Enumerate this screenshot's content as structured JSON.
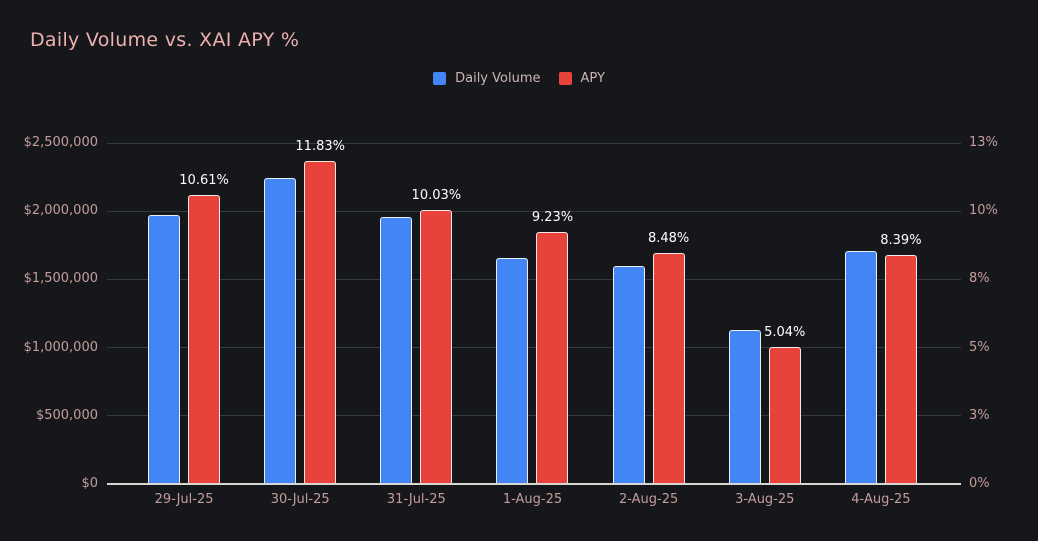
{
  "page": {
    "background": "#16171b"
  },
  "chart": {
    "title": "Daily Volume vs. XAI APY %"
  },
  "legend": {
    "items": [
      {
        "label": "Daily Volume",
        "color": "#4285f4"
      },
      {
        "label": "APY",
        "color": "#e8433a"
      }
    ]
  },
  "colors": {
    "background": "#16171b",
    "title_text": "#eeafaf",
    "axis_tick_text": "#c49c9c",
    "legend_text": "#cdb5b5",
    "gridline": "#36383f",
    "baseline": "#d8d6d3",
    "bar_blue": "#4285f4",
    "bar_red": "#e8433a",
    "bar_stroke": "#f8f8f8",
    "data_label_text": "#ffffff"
  },
  "chart_data": {
    "type": "bar",
    "title": "Daily Volume vs. XAI APY %",
    "categories": [
      "29-Jul-25",
      "30-Jul-25",
      "31-Jul-25",
      "1-Aug-25",
      "2-Aug-25",
      "3-Aug-25",
      "4-Aug-25"
    ],
    "series": [
      {
        "name": "Daily Volume",
        "axis": "left",
        "color": "#4285f4",
        "values": [
          1970000,
          2240000,
          1960000,
          1660000,
          1600000,
          1130000,
          1710000
        ]
      },
      {
        "name": "APY",
        "axis": "right",
        "color": "#e8433a",
        "values": [
          10.61,
          11.83,
          10.03,
          9.23,
          8.48,
          5.04,
          8.39
        ],
        "data_labels": [
          "10.61%",
          "11.83%",
          "10.03%",
          "9.23%",
          "8.48%",
          "5.04%",
          "8.39%"
        ]
      }
    ],
    "left_axis": {
      "min": 0,
      "max": 2500000,
      "tick_labels": [
        "$0",
        "$500,000",
        "$1,000,000",
        "$1,500,000",
        "$2,000,000",
        "$2,500,000"
      ]
    },
    "right_axis": {
      "min": 0,
      "max": 12.5,
      "tick_labels": [
        "0%",
        "3%",
        "5%",
        "8%",
        "10%",
        "13%"
      ],
      "note": "tick labels are rounded values of 0, 2.5, 5, 7.5, 10, 12.5"
    },
    "grid": true,
    "legend_position": "top-center"
  }
}
